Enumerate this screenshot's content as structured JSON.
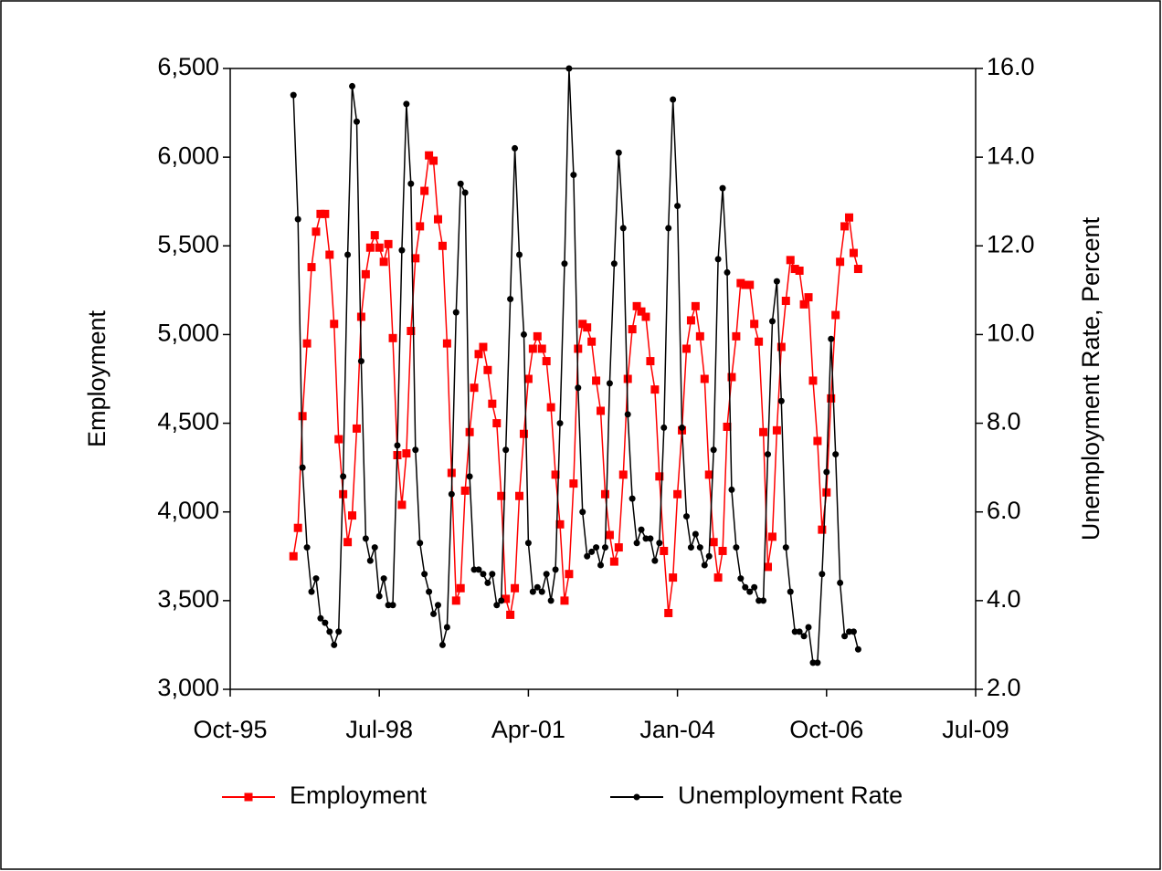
{
  "chart_data": {
    "type": "line",
    "x": [
      "1996-12",
      "1997-01",
      "1997-02",
      "1997-03",
      "1997-04",
      "1997-05",
      "1997-06",
      "1997-07",
      "1997-08",
      "1997-09",
      "1997-10",
      "1997-11",
      "1997-12",
      "1998-01",
      "1998-02",
      "1998-03",
      "1998-04",
      "1998-05",
      "1998-06",
      "1998-07",
      "1998-08",
      "1998-09",
      "1998-10",
      "1998-11",
      "1998-12",
      "1999-01",
      "1999-02",
      "1999-03",
      "1999-04",
      "1999-05",
      "1999-06",
      "1999-07",
      "1999-08",
      "1999-09",
      "1999-10",
      "1999-11",
      "1999-12",
      "2000-01",
      "2000-02",
      "2000-03",
      "2000-04",
      "2000-05",
      "2000-06",
      "2000-07",
      "2000-08",
      "2000-09",
      "2000-10",
      "2000-11",
      "2000-12",
      "2001-01",
      "2001-02",
      "2001-03",
      "2001-04",
      "2001-05",
      "2001-06",
      "2001-07",
      "2001-08",
      "2001-09",
      "2001-10",
      "2001-11",
      "2001-12",
      "2002-01",
      "2002-02",
      "2002-03",
      "2002-04",
      "2002-05",
      "2002-06",
      "2002-07",
      "2002-08",
      "2002-09",
      "2002-10",
      "2002-11",
      "2002-12",
      "2003-01",
      "2003-02",
      "2003-03",
      "2003-04",
      "2003-05",
      "2003-06",
      "2003-07",
      "2003-08",
      "2003-09",
      "2003-10",
      "2003-11",
      "2003-12",
      "2004-01",
      "2004-02",
      "2004-03",
      "2004-04",
      "2004-05",
      "2004-06",
      "2004-07",
      "2004-08",
      "2004-09",
      "2004-10",
      "2004-11",
      "2004-12",
      "2005-01",
      "2005-02",
      "2005-03",
      "2005-04",
      "2005-05",
      "2005-06",
      "2005-07",
      "2005-08",
      "2005-09",
      "2005-10",
      "2005-11",
      "2005-12",
      "2006-01",
      "2006-02",
      "2006-03",
      "2006-04",
      "2006-05",
      "2006-06",
      "2006-07",
      "2006-08",
      "2006-09",
      "2006-10",
      "2006-11",
      "2006-12",
      "2007-01",
      "2007-02",
      "2007-03",
      "2007-04",
      "2007-05"
    ],
    "series": [
      {
        "name": "Employment",
        "color": "#ff0000",
        "marker": "square",
        "values": [
          3750,
          3910,
          4540,
          4950,
          5380,
          5580,
          5680,
          5680,
          5450,
          5060,
          4410,
          4100,
          3830,
          3980,
          4470,
          5100,
          5340,
          5490,
          5560,
          5490,
          5410,
          5510,
          4980,
          4320,
          4040,
          4330,
          5020,
          5430,
          5610,
          5810,
          6010,
          5980,
          5650,
          5500,
          4950,
          4220,
          3500,
          3570,
          4120,
          4450,
          4700,
          4890,
          4930,
          4800,
          4610,
          4500,
          4090,
          3510,
          3420,
          3570,
          4090,
          4440,
          4750,
          4920,
          4990,
          4920,
          4850,
          4590,
          4210,
          3930,
          3500,
          3650,
          4160,
          4920,
          5060,
          5040,
          4960,
          4740,
          4570,
          4100,
          3870,
          3720,
          3800,
          4210,
          4750,
          5030,
          5160,
          5130,
          5100,
          4850,
          4690,
          4200,
          3780,
          3430,
          3630,
          4100,
          4460,
          4920,
          5080,
          5160,
          4990,
          4750,
          4210,
          3830,
          3630,
          3780,
          4480,
          4760,
          4990,
          5290,
          5280,
          5280,
          5060,
          4960,
          4450,
          3690,
          3860,
          4460,
          4930,
          5190,
          5420,
          5370,
          5360,
          5170,
          5210,
          4740,
          4400,
          3900,
          4110,
          4640,
          5110,
          5410,
          5610,
          5660,
          5460,
          5370
        ]
      },
      {
        "name": "Unemployment Rate",
        "color": "#000000",
        "marker": "circle",
        "axis": "y2",
        "values": [
          15.4,
          12.6,
          7.0,
          5.2,
          4.2,
          4.5,
          3.6,
          3.5,
          3.3,
          3.0,
          3.3,
          6.8,
          11.8,
          15.6,
          14.8,
          9.4,
          5.4,
          4.9,
          5.2,
          4.1,
          4.5,
          3.9,
          3.9,
          7.5,
          11.9,
          15.2,
          13.4,
          7.4,
          5.3,
          4.6,
          4.2,
          3.7,
          3.9,
          3.0,
          3.4,
          6.4,
          10.5,
          13.4,
          13.2,
          6.8,
          4.7,
          4.7,
          4.6,
          4.4,
          4.6,
          3.9,
          4.0,
          7.4,
          10.8,
          14.2,
          11.8,
          10.0,
          5.3,
          4.2,
          4.3,
          4.2,
          4.6,
          4.0,
          4.7,
          8.0,
          11.6,
          16.0,
          13.6,
          8.8,
          6.0,
          5.0,
          5.1,
          5.2,
          4.8,
          5.2,
          8.9,
          11.6,
          14.1,
          12.4,
          8.2,
          6.3,
          5.3,
          5.6,
          5.4,
          5.4,
          4.9,
          5.3,
          7.9,
          12.4,
          15.3,
          12.9,
          7.9,
          5.9,
          5.2,
          5.5,
          5.2,
          4.8,
          5.0,
          7.4,
          11.7,
          13.3,
          11.4,
          6.5,
          5.2,
          4.5,
          4.3,
          4.2,
          4.3,
          4.0,
          4.0,
          7.3,
          10.3,
          11.2,
          8.5,
          5.2,
          4.2,
          3.3,
          3.3,
          3.2,
          3.4,
          2.6,
          2.6,
          4.6,
          6.9,
          9.9,
          7.3,
          4.4,
          3.2,
          3.3,
          3.3,
          2.9
        ]
      }
    ],
    "ylabel": "Employment",
    "y2label": "Unemployment Rate, Percent",
    "xlim": [
      "1995-10",
      "2009-07"
    ],
    "xticks": [
      {
        "value": "1995-10",
        "label": "Oct-95"
      },
      {
        "value": "1998-07",
        "label": "Jul-98"
      },
      {
        "value": "2001-04",
        "label": "Apr-01"
      },
      {
        "value": "2004-01",
        "label": "Jan-04"
      },
      {
        "value": "2006-10",
        "label": "Oct-06"
      },
      {
        "value": "2009-07",
        "label": "Jul-09"
      }
    ],
    "ylim": [
      3000,
      6500
    ],
    "yticks": [
      {
        "value": 3000,
        "label": "3,000"
      },
      {
        "value": 3500,
        "label": "3,500"
      },
      {
        "value": 4000,
        "label": "4,000"
      },
      {
        "value": 4500,
        "label": "4,500"
      },
      {
        "value": 5000,
        "label": "5,000"
      },
      {
        "value": 5500,
        "label": "5,500"
      },
      {
        "value": 6000,
        "label": "6,000"
      },
      {
        "value": 6500,
        "label": "6,500"
      }
    ],
    "y2lim": [
      2,
      16
    ],
    "y2ticks": [
      {
        "value": 2,
        "label": "2.0"
      },
      {
        "value": 4,
        "label": "4.0"
      },
      {
        "value": 6,
        "label": "6.0"
      },
      {
        "value": 8,
        "label": "8.0"
      },
      {
        "value": 10,
        "label": "10.0"
      },
      {
        "value": 12,
        "label": "12.0"
      },
      {
        "value": 14,
        "label": "14.0"
      },
      {
        "value": 16,
        "label": "16.0"
      }
    ],
    "legend": "bottom"
  }
}
